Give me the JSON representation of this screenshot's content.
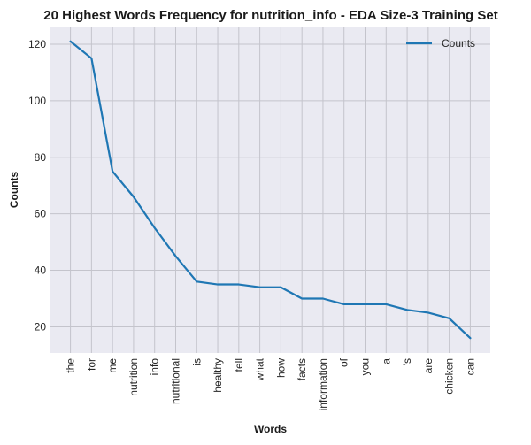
{
  "chart_data": {
    "type": "line",
    "title": "20 Highest Words Frequency for nutrition_info - EDA Size-3 Training Set",
    "xlabel": "Words",
    "ylabel": "Counts",
    "categories": [
      "the",
      "for",
      "me",
      "nutrition",
      "info",
      "nutritional",
      "is",
      "healthy",
      "tell",
      "what",
      "how",
      "facts",
      "information",
      "of",
      "you",
      "a",
      "'s",
      "are",
      "chicken",
      "can"
    ],
    "series": [
      {
        "name": "Counts",
        "values": [
          121,
          115,
          75,
          66,
          55,
          45,
          36,
          35,
          35,
          34,
          34,
          30,
          30,
          28,
          28,
          28,
          26,
          25,
          23,
          16
        ]
      }
    ],
    "ylim": [
      10.75,
      126.25
    ],
    "yticks": [
      20,
      40,
      60,
      80,
      100,
      120
    ],
    "grid": true,
    "legend": "top-right",
    "line_color": "#1f77b4",
    "background_color": "#eaeaf2"
  }
}
